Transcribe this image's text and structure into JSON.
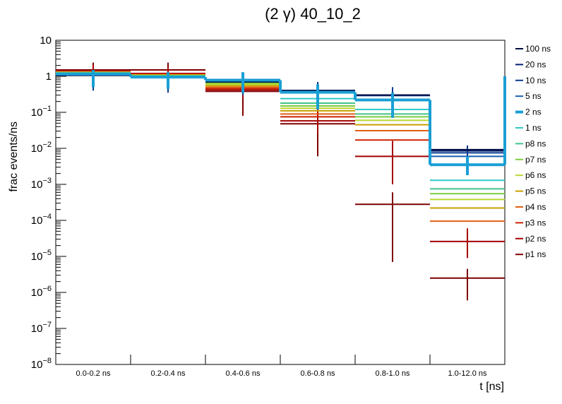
{
  "chart_data": {
    "type": "step-histogram",
    "title": "(2 γ) 40_10_2",
    "xlabel": "t [ns]",
    "ylabel": "frac events/ns",
    "yscale": "log",
    "ylim": [
      1e-08,
      10
    ],
    "y_ticks": [
      {
        "value": 1e-08,
        "base": "10",
        "exp": "−8"
      },
      {
        "value": 1e-07,
        "base": "10",
        "exp": "−7"
      },
      {
        "value": 1e-06,
        "base": "10",
        "exp": "−6"
      },
      {
        "value": 1e-05,
        "base": "10",
        "exp": "−5"
      },
      {
        "value": 0.0001,
        "base": "10",
        "exp": "−4"
      },
      {
        "value": 0.001,
        "base": "10",
        "exp": "−3"
      },
      {
        "value": 0.01,
        "base": "10",
        "exp": "−2"
      },
      {
        "value": 0.1,
        "base": "10",
        "exp": "−1"
      },
      {
        "value": 1,
        "base": "1",
        "exp": ""
      },
      {
        "value": 10,
        "base": "10",
        "exp": ""
      }
    ],
    "categories": [
      "0.0-0.2 ns",
      "0.2-0.4 ns",
      "0.4-0.6 ns",
      "0.6-0.8 ns",
      "0.8-1.0 ns",
      "1.0-12.0 ns"
    ],
    "series": [
      {
        "name": "p1 ns",
        "color": "#7f0000",
        "values": [
          1.5,
          1.5,
          0.38,
          0.048,
          0.00028,
          2.5e-06
        ],
        "err": [
          [
            1.0,
            2.4
          ],
          [
            1.0,
            2.4
          ],
          [
            0.08,
            0.9
          ],
          [
            0.006,
            0.12
          ],
          [
            7e-06,
            0.0006
          ],
          [
            6e-07,
            4.5e-06
          ]
        ]
      },
      {
        "name": "p2 ns",
        "color": "#a50000",
        "values": [
          1.4,
          1.2,
          0.42,
          0.058,
          0.006,
          2.6e-05
        ],
        "err": [
          [
            0.9,
            2.1
          ],
          [
            0.8,
            1.8
          ],
          [
            0.25,
            0.7
          ],
          [
            0.025,
            0.12
          ],
          [
            0.001,
            0.016
          ],
          [
            9e-06,
            6e-05
          ]
        ]
      },
      {
        "name": "p3 ns",
        "color": "#cc2200",
        "values": [
          1.35,
          1.15,
          0.46,
          0.075,
          0.017,
          0.0
        ],
        "err": null
      },
      {
        "name": "p4 ns",
        "color": "#e06010",
        "values": [
          1.32,
          1.1,
          0.5,
          0.09,
          0.031,
          9.5e-05
        ],
        "err": null
      },
      {
        "name": "p5 ns",
        "color": "#c9a000",
        "values": [
          1.3,
          1.08,
          0.55,
          0.11,
          0.045,
          0.00022
        ],
        "err": null
      },
      {
        "name": "p6 ns",
        "color": "#b8d830",
        "values": [
          1.28,
          1.06,
          0.6,
          0.13,
          0.06,
          0.00038
        ],
        "err": null
      },
      {
        "name": "p7 ns",
        "color": "#7ccc40",
        "values": [
          1.26,
          1.04,
          0.65,
          0.15,
          0.075,
          0.00055
        ],
        "err": null
      },
      {
        "name": "p8 ns",
        "color": "#40c48a",
        "values": [
          1.24,
          1.02,
          0.7,
          0.18,
          0.09,
          0.00075
        ],
        "err": null
      },
      {
        "name": "1 ns",
        "color": "#30c8c8",
        "values": [
          1.22,
          1.0,
          0.74,
          0.24,
          0.12,
          0.0013
        ],
        "err": null
      },
      {
        "name": "2 ns",
        "color": "#1a9fd5",
        "values": [
          1.15,
          0.95,
          0.78,
          0.36,
          0.22,
          0.0035
        ],
        "err": [
          [
            0.5,
            1.5
          ],
          [
            0.45,
            1.3
          ],
          [
            0.35,
            1.3
          ],
          [
            0.12,
            0.6
          ],
          [
            0.07,
            0.35
          ],
          [
            0.0018,
            0.006
          ]
        ],
        "emphasis": true
      },
      {
        "name": "5 ns",
        "color": "#1560b0",
        "values": [
          1.12,
          0.93,
          0.72,
          0.4,
          0.29,
          0.006
        ],
        "err": null
      },
      {
        "name": "10 ns",
        "color": "#0a3a90",
        "values": [
          1.1,
          0.92,
          0.7,
          0.4,
          0.3,
          0.0075
        ],
        "err": [
          [
            0.4,
            1.4
          ],
          [
            0.35,
            1.25
          ],
          [
            0.3,
            1.0
          ],
          [
            0.2,
            0.7
          ],
          [
            0.15,
            0.5
          ],
          [
            0.003,
            0.012
          ]
        ]
      },
      {
        "name": "20 ns",
        "color": "#001f70",
        "values": [
          1.08,
          0.92,
          0.7,
          0.4,
          0.3,
          0.0085
        ],
        "err": null
      },
      {
        "name": "100 ns",
        "color": "#000a40",
        "values": [
          1.06,
          0.92,
          0.7,
          0.4,
          0.3,
          0.0092
        ],
        "err": null
      }
    ],
    "legend": {
      "placement": "right",
      "entries": [
        "100 ns",
        "20 ns",
        "10 ns",
        "5 ns",
        "2 ns",
        "1 ns",
        "p8 ns",
        "p7 ns",
        "p6 ns",
        "p5 ns",
        "p4 ns",
        "p3 ns",
        "p2 ns",
        "p1 ns"
      ]
    }
  }
}
